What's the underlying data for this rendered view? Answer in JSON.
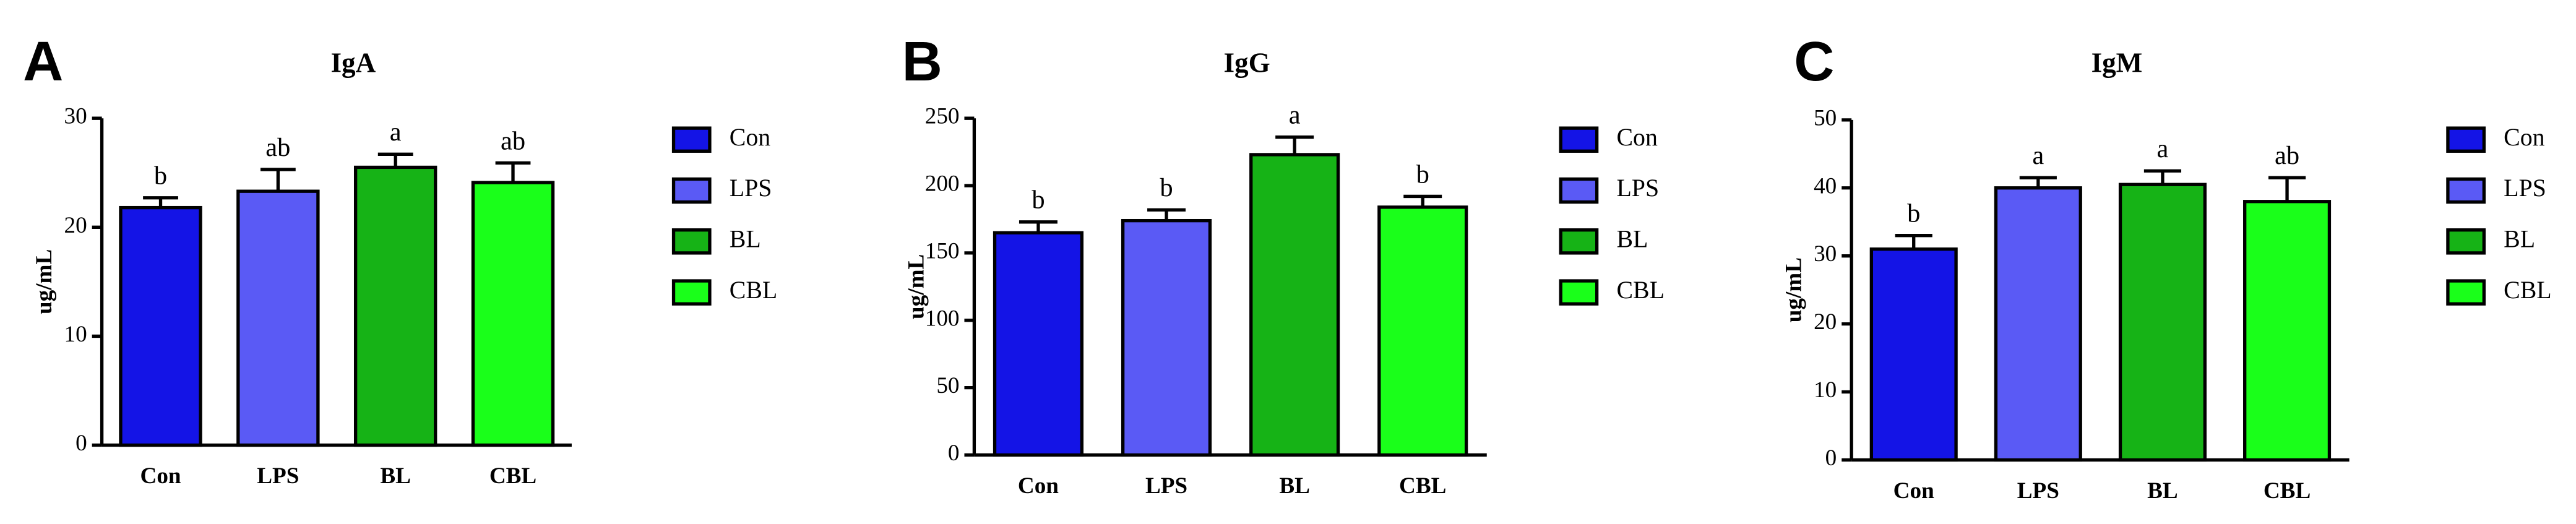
{
  "chart_data": [
    {
      "type": "bar",
      "panel": "A",
      "title": "IgA",
      "y_label": "ug/mL",
      "categories": [
        "Con",
        "LPS",
        "BL",
        "CBL"
      ],
      "values": [
        21.8,
        23.3,
        25.5,
        24.1
      ],
      "errors": [
        0.9,
        2.0,
        1.2,
        1.8
      ],
      "letters": [
        "b",
        "ab",
        "a",
        "ab"
      ],
      "colors": [
        "#1414e6",
        "#5a5af5",
        "#16b316",
        "#1aff1a"
      ],
      "ylim": [
        0,
        30
      ],
      "yticks": [
        0,
        10,
        20,
        30
      ],
      "legend": "right"
    },
    {
      "type": "bar",
      "panel": "B",
      "title": "IgG",
      "y_label": "ug/mL",
      "categories": [
        "Con",
        "LPS",
        "BL",
        "CBL"
      ],
      "values": [
        165,
        174,
        223,
        184
      ],
      "errors": [
        8,
        8,
        13,
        8
      ],
      "letters": [
        "b",
        "b",
        "a",
        "b"
      ],
      "colors": [
        "#1414e6",
        "#5a5af5",
        "#16b316",
        "#1aff1a"
      ],
      "ylim": [
        0,
        250
      ],
      "yticks": [
        0,
        50,
        100,
        150,
        200,
        250
      ],
      "legend": "right"
    },
    {
      "type": "bar",
      "panel": "C",
      "title": "IgM",
      "y_label": "ug/mL",
      "categories": [
        "Con",
        "LPS",
        "BL",
        "CBL"
      ],
      "values": [
        31,
        40,
        40.5,
        38
      ],
      "errors": [
        2,
        1.5,
        2,
        3.5
      ],
      "letters": [
        "b",
        "a",
        "a",
        "ab"
      ],
      "colors": [
        "#1414e6",
        "#5a5af5",
        "#16b316",
        "#1aff1a"
      ],
      "ylim": [
        0,
        50
      ],
      "yticks": [
        0,
        10,
        20,
        30,
        40,
        50
      ],
      "legend": "right"
    }
  ]
}
